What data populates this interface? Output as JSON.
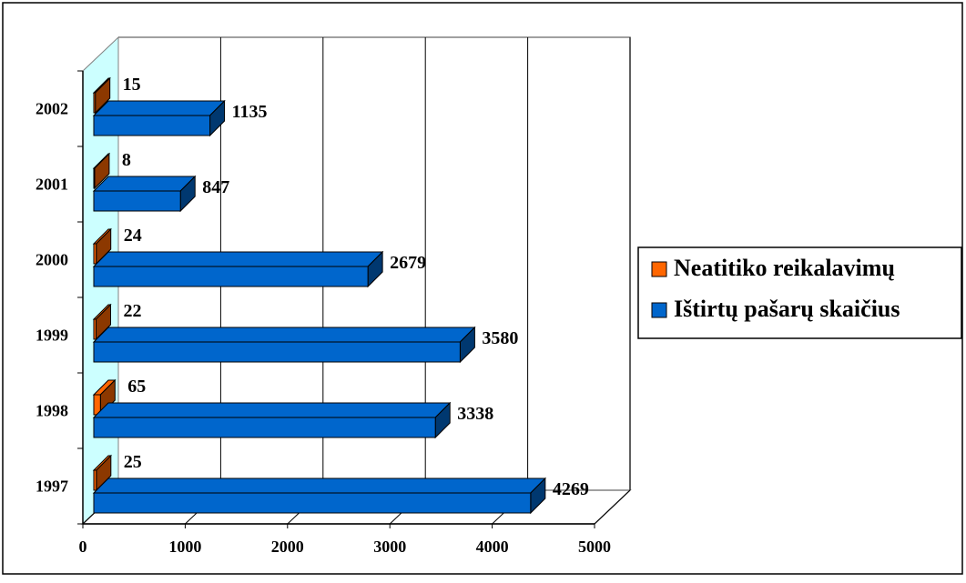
{
  "chart_data": {
    "type": "bar",
    "orientation": "horizontal",
    "three_d": true,
    "categories": [
      "1997",
      "1998",
      "1999",
      "2000",
      "2001",
      "2002"
    ],
    "series": [
      {
        "name": "Neatitiko reikalavimų",
        "color": "#FF6600",
        "values": [
          25,
          65,
          22,
          24,
          8,
          15
        ]
      },
      {
        "name": "Ištirtų pašarų skaičius",
        "color": "#0066CC",
        "values": [
          4269,
          3338,
          3580,
          2679,
          847,
          1135
        ]
      }
    ],
    "x_ticks": [
      "0",
      "1000",
      "2000",
      "3000",
      "4000",
      "5000"
    ],
    "xlim": [
      0,
      5000
    ],
    "gridlines": true,
    "data_labels": true,
    "legend_position": "right",
    "wall_color": "#CCFFFF"
  }
}
